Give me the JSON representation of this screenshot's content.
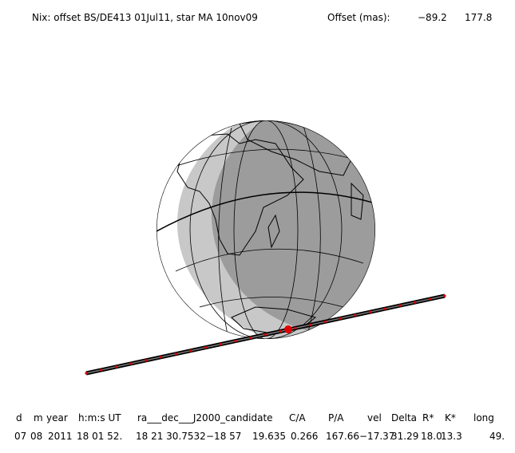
{
  "title": {
    "event": "Nix: offset BS/DE413 01Jul11, star MA 10nov09",
    "offset_label": "Offset (mas):",
    "offset_x": "−89.2",
    "offset_y": "177.8"
  },
  "table": {
    "header": [
      "d",
      "m",
      "year",
      "h:m:s UT",
      "ra___dec___J2000_candidate",
      "C/A",
      "P/A",
      "vel",
      "Delta",
      "R*",
      "K*",
      "long"
    ],
    "values": [
      "07",
      "08",
      "2011",
      "18 01 52.",
      "18 21 30.7532",
      "−18 57",
      "19.635",
      "0.266",
      "167.66",
      "−17.37",
      "31.29",
      "18.0",
      "13.3",
      "49."
    ]
  }
}
